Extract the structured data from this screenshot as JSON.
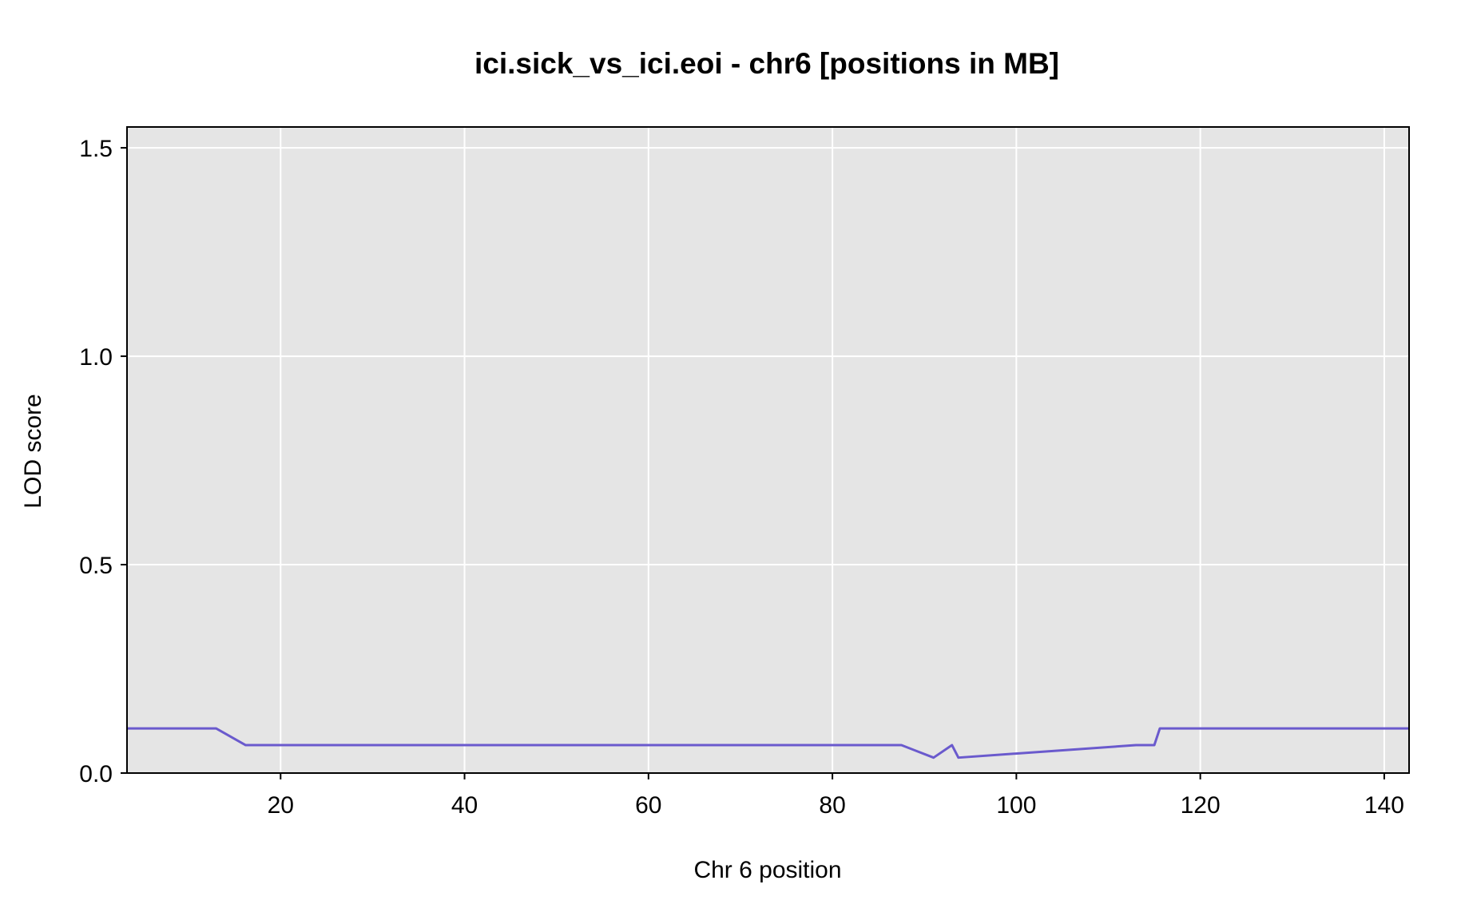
{
  "chart_data": {
    "type": "line",
    "title": "ici.sick_vs_ici.eoi - chr6 [positions in MB]",
    "xlabel": "Chr 6 position",
    "ylabel": "LOD score",
    "xlim": [
      3.3,
      142.7
    ],
    "ylim": [
      0.0,
      1.55
    ],
    "xticks": [
      20,
      40,
      60,
      80,
      100,
      120,
      140
    ],
    "yticks": [
      0.0,
      0.5,
      1.0,
      1.5
    ],
    "ytick_labels": [
      "0.0",
      "0.5",
      "1.0",
      "1.5"
    ],
    "grid": true,
    "legend": "none",
    "series": [
      {
        "color": "#6a5acd",
        "x": [
          3.3,
          13.0,
          16.2,
          87.5,
          91.0,
          93.0,
          93.7,
          113.0,
          115.0,
          115.6,
          142.7
        ],
        "y": [
          0.107,
          0.107,
          0.067,
          0.067,
          0.037,
          0.067,
          0.037,
          0.067,
          0.067,
          0.107,
          0.107
        ]
      }
    ],
    "colors": {
      "panel_background": "#e5e5e5",
      "grid": "#ffffff",
      "line": "#6a5acd",
      "baseline": "#2b2bb0",
      "border": "#000000"
    }
  }
}
